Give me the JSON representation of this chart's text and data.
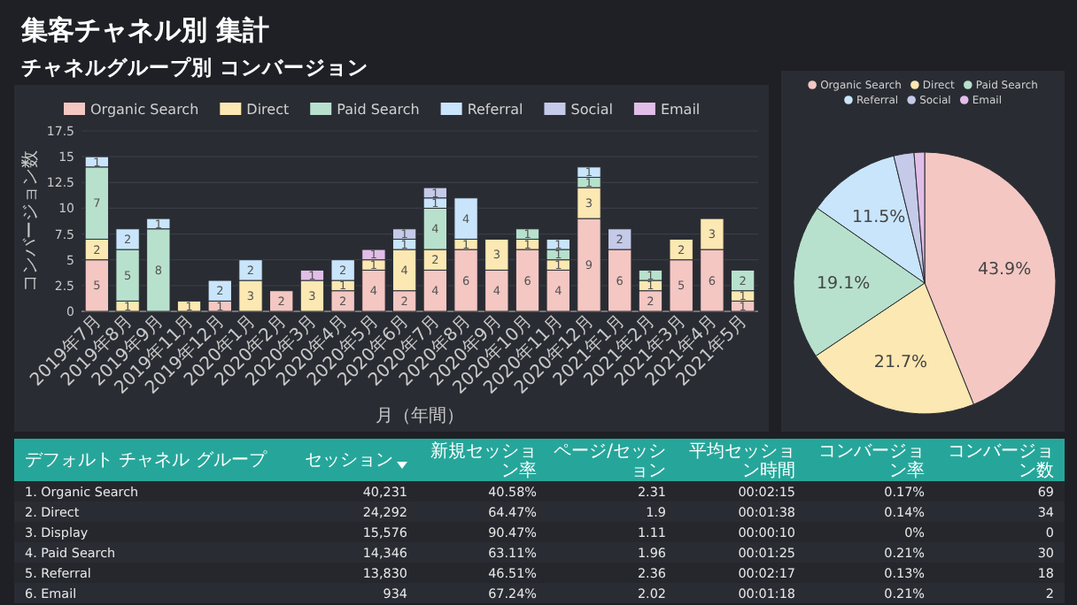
{
  "chart_data": [
    {
      "type": "bar",
      "title": "集客チャネル別 集計",
      "subtitle": "チャネルグループ別 コンバージョン",
      "xlabel": "月（年間）",
      "ylabel": "コンバージョン数",
      "stacked": true,
      "data_labels": true,
      "legend": "top",
      "grid": "y",
      "categories": [
        "2019年7月",
        "2019年8月",
        "2019年9月",
        "2019年11月",
        "2019年12月",
        "2020年1月",
        "2020年2月",
        "2020年3月",
        "2020年4月",
        "2020年5月",
        "2020年6月",
        "2020年7月",
        "2020年8月",
        "2020年9月",
        "2020年10月",
        "2020年11月",
        "2020年12月",
        "2021年1月",
        "2021年2月",
        "2021年3月",
        "2021年4月",
        "2021年5月"
      ],
      "ylim": [
        0,
        17.5
      ],
      "yticks": [
        0,
        2.5,
        5,
        7.5,
        10,
        12.5,
        15,
        17.5
      ],
      "series": [
        {
          "name": "Organic Search",
          "color": "#f4c7c3",
          "values": [
            5,
            null,
            null,
            null,
            1,
            null,
            2,
            null,
            2,
            4,
            2,
            4,
            6,
            4,
            6,
            4,
            9,
            6,
            2,
            5,
            6,
            1
          ]
        },
        {
          "name": "Direct",
          "color": "#fce8b2",
          "values": [
            2,
            1,
            null,
            1,
            null,
            3,
            null,
            3,
            1,
            1,
            4,
            2,
            1,
            3,
            1,
            1,
            3,
            null,
            1,
            2,
            3,
            1
          ]
        },
        {
          "name": "Paid Search",
          "color": "#b7e1cd",
          "values": [
            7,
            5,
            8,
            null,
            null,
            null,
            null,
            null,
            null,
            null,
            null,
            4,
            null,
            null,
            1,
            1,
            1,
            null,
            1,
            null,
            null,
            2
          ]
        },
        {
          "name": "Referral",
          "color": "#c9e5fb",
          "values": [
            1,
            2,
            1,
            null,
            2,
            2,
            null,
            null,
            2,
            null,
            1,
            1,
            4,
            null,
            null,
            1,
            1,
            null,
            null,
            null,
            null,
            null
          ]
        },
        {
          "name": "Social",
          "color": "#c5cae9",
          "values": [
            null,
            null,
            null,
            null,
            null,
            null,
            null,
            null,
            null,
            null,
            1,
            1,
            null,
            null,
            null,
            null,
            null,
            2,
            null,
            null,
            null,
            null
          ]
        },
        {
          "name": "Email",
          "color": "#e1bee7",
          "values": [
            null,
            null,
            null,
            null,
            null,
            null,
            null,
            1,
            null,
            1,
            null,
            null,
            null,
            null,
            null,
            null,
            null,
            null,
            null,
            null,
            null,
            null
          ]
        }
      ]
    },
    {
      "type": "pie",
      "legend": "top",
      "categories": [
        "Organic Search",
        "Direct",
        "Paid Search",
        "Referral",
        "Social",
        "Email"
      ],
      "values": [
        43.9,
        21.7,
        19.1,
        11.5,
        2.5,
        1.3
      ],
      "colors": [
        "#f4c7c3",
        "#fce8b2",
        "#b7e1cd",
        "#c9e5fb",
        "#c5cae9",
        "#e1bee7"
      ],
      "value_labels": [
        "43.9%",
        "21.7%",
        "19.1%",
        "11.5%",
        null,
        null
      ]
    },
    {
      "type": "other",
      "categories": [
        "デフォルト チャネル グループ",
        "セッション",
        "新規セッション率",
        "ページ/セッション",
        "平均セッション時間",
        "コンバージョン率",
        "コンバージョン数"
      ],
      "cell_labels": [
        [
          "1. Organic Search",
          "40,231",
          "40.58%",
          "2.31",
          "00:02:15",
          "0.17%",
          "69"
        ],
        [
          "2. Direct",
          "24,292",
          "64.47%",
          "1.9",
          "00:01:38",
          "0.14%",
          "34"
        ],
        [
          "3. Display",
          "15,576",
          "90.47%",
          "1.11",
          "00:00:10",
          "0%",
          "0"
        ],
        [
          "4. Paid Search",
          "14,346",
          "63.11%",
          "1.96",
          "00:01:25",
          "0.21%",
          "30"
        ],
        [
          "5. Referral",
          "13,830",
          "46.51%",
          "2.36",
          "00:02:17",
          "0.13%",
          "18"
        ],
        [
          "6. Email",
          "934",
          "67.24%",
          "2.02",
          "00:01:18",
          "0.21%",
          "2"
        ]
      ]
    }
  ]
}
